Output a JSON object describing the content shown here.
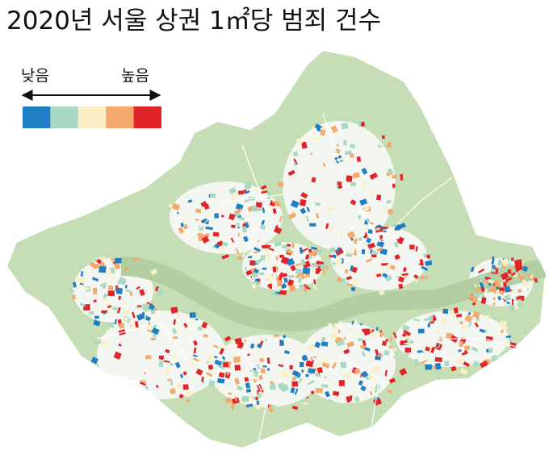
{
  "title": "2020년 서울 상권 1㎡당 범죄 건수",
  "legend": {
    "low_label": "낮음",
    "high_label": "높음",
    "colors": [
      "#1f7fc4",
      "#a9d9c2",
      "#fbefc6",
      "#f4a86c",
      "#e0242a"
    ]
  }
}
